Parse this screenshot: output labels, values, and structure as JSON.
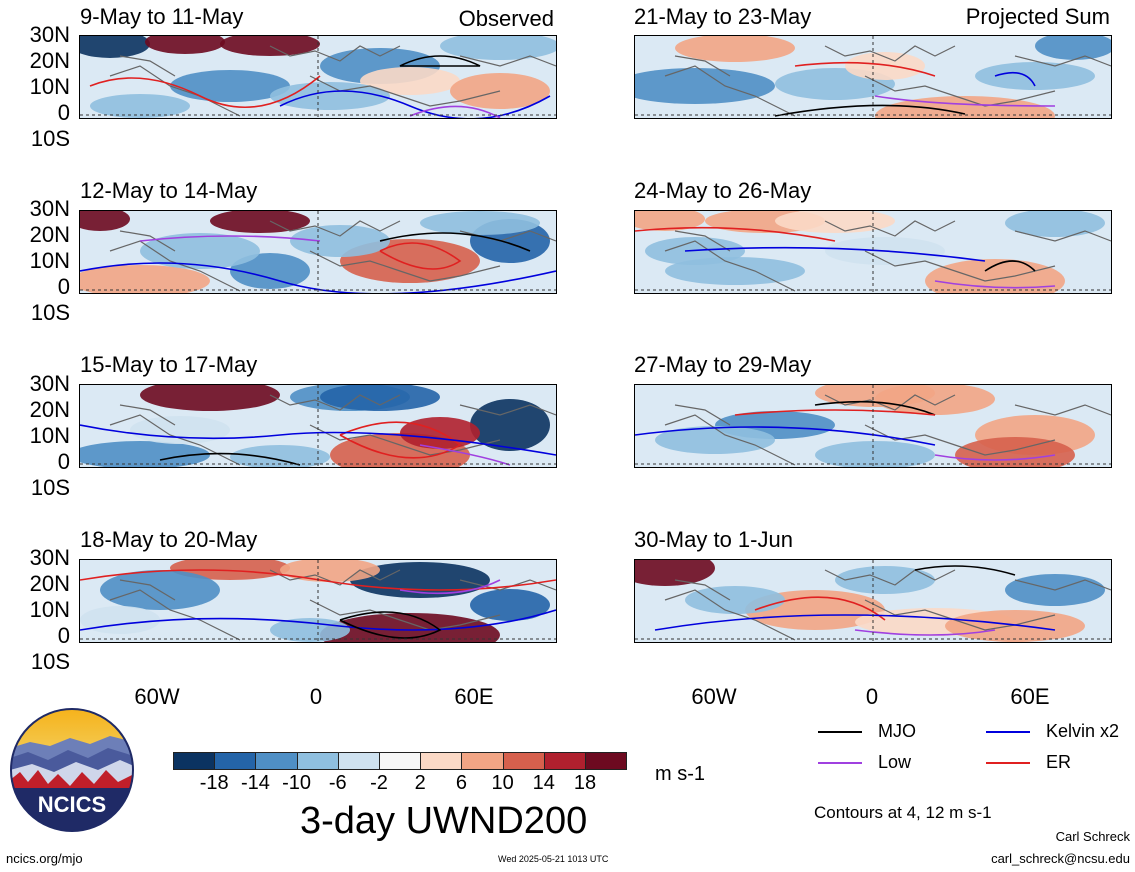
{
  "panels_left": [
    {
      "title": "9-May to 11-May",
      "tag": "Observed"
    },
    {
      "title": "12-May to 14-May",
      "tag": ""
    },
    {
      "title": "15-May to 17-May",
      "tag": ""
    },
    {
      "title": "18-May to 20-May",
      "tag": ""
    }
  ],
  "panels_right": [
    {
      "title": "21-May to 23-May",
      "tag": "Projected Sum"
    },
    {
      "title": "24-May to 26-May",
      "tag": ""
    },
    {
      "title": "27-May to 29-May",
      "tag": ""
    },
    {
      "title": "30-May to 1-Jun",
      "tag": ""
    }
  ],
  "lat_labels": [
    "30N",
    "20N",
    "10N",
    "0",
    "10S"
  ],
  "lon_labels": [
    "60W",
    "0",
    "60E"
  ],
  "colorbar": {
    "ticks": [
      "-18",
      "-14",
      "-10",
      "-6",
      "-2",
      "2",
      "6",
      "10",
      "14",
      "18"
    ],
    "units": "m s-1",
    "colors": [
      "#0b3361",
      "#2464a8",
      "#4f8fc5",
      "#8fbfdf",
      "#cfe2f0",
      "#f7f7f7",
      "#fbd9c6",
      "#f2a585",
      "#d6604d",
      "#b0202e",
      "#6d0a20"
    ]
  },
  "main_title": "3-day UWND200",
  "legend": {
    "items": [
      {
        "label": "MJO",
        "color": "#000000"
      },
      {
        "label": "Kelvin x2",
        "color": "#0000dd"
      },
      {
        "label": "Low",
        "color": "#a040e0"
      },
      {
        "label": "ER",
        "color": "#e02020"
      }
    ],
    "contour_note": "Contours at 4, 12 m s-1"
  },
  "logo": {
    "text": "NCICS"
  },
  "footer": {
    "left": "ncics.org/mjo",
    "center": "Wed 2025-05-21 1013 UTC",
    "author": "Carl Schreck",
    "email": "carl_schreck@ncsu.edu"
  }
}
